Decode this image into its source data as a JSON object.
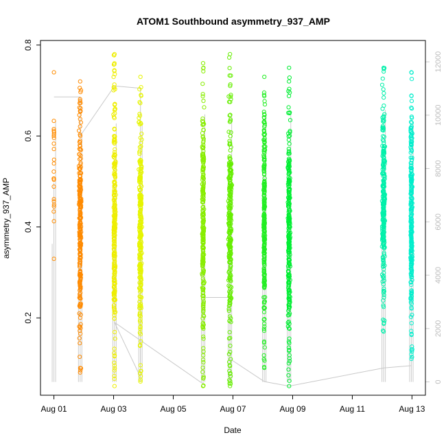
{
  "chart_data": {
    "type": "scatter",
    "title": "ATOM1 Southbound asymmetry_937_AMP",
    "xlabel": "Date",
    "ylabel": "asymmetry_937_AMP",
    "x_ticks": [
      "Aug 01",
      "Aug 03",
      "Aug 05",
      "Aug 07",
      "Aug 09",
      "Aug 11",
      "Aug 13"
    ],
    "x_tick_days": [
      1,
      3,
      5,
      7,
      9,
      11,
      13
    ],
    "xlim_days": [
      0.55,
      13.45
    ],
    "ylim": [
      0.03,
      0.81
    ],
    "y_ticks": [
      0.2,
      0.4,
      0.6,
      0.8
    ],
    "y2_ticks": [
      0,
      2000,
      4000,
      6000,
      8000,
      10000,
      12000
    ],
    "y2lim": [
      -500,
      12800
    ],
    "grid": false,
    "marker": "open circle",
    "line_color": "#c8c8c8",
    "clusters": [
      {
        "day": 1.0,
        "width": 0.02,
        "ymin": 0.33,
        "ymax": 0.74,
        "color": "#ff8c00",
        "secondary_max": 11500
      },
      {
        "day": 1.88,
        "width": 0.09,
        "ymin": 0.08,
        "ymax": 0.72,
        "color": "#ff8a00",
        "secondary_max": 11000
      },
      {
        "day": 3.03,
        "width": 0.09,
        "ymin": 0.05,
        "ymax": 0.78,
        "color": "#eeee00",
        "secondary_max": 11400
      },
      {
        "day": 3.9,
        "width": 0.12,
        "ymin": 0.06,
        "ymax": 0.73,
        "color": "#e6f500",
        "secondary_max": 11400
      },
      {
        "day": 6.0,
        "width": 0.08,
        "ymin": 0.05,
        "ymax": 0.76,
        "color": "#88ee00",
        "secondary_max": 11800
      },
      {
        "day": 6.9,
        "width": 0.14,
        "ymin": 0.05,
        "ymax": 0.78,
        "color": "#66ee00",
        "secondary_max": 11800
      },
      {
        "day": 8.05,
        "width": 0.06,
        "ymin": 0.09,
        "ymax": 0.73,
        "color": "#22ee22",
        "secondary_max": 11800
      },
      {
        "day": 8.88,
        "width": 0.1,
        "ymin": 0.05,
        "ymax": 0.75,
        "color": "#00ee33",
        "secondary_max": 11800
      },
      {
        "day": 12.05,
        "width": 0.12,
        "ymin": 0.17,
        "ymax": 0.75,
        "color": "#00f0aa",
        "secondary_max": 12000
      },
      {
        "day": 12.98,
        "width": 0.08,
        "ymin": 0.11,
        "ymax": 0.74,
        "color": "#00eecc",
        "secondary_max": 11500
      }
    ],
    "connector_line": [
      [
        1.0,
        0.686
      ],
      [
        1.88,
        0.686
      ],
      [
        1.88,
        0.6
      ],
      [
        3.03,
        0.71
      ],
      [
        3.9,
        0.705
      ],
      [
        3.9,
        0.07
      ],
      [
        3.03,
        0.19
      ],
      [
        6.0,
        0.055
      ],
      [
        6.0,
        0.245
      ],
      [
        6.9,
        0.245
      ],
      [
        6.9,
        0.11
      ],
      [
        8.05,
        0.06
      ],
      [
        8.88,
        0.05
      ],
      [
        12.05,
        0.09
      ],
      [
        12.98,
        0.095
      ]
    ]
  }
}
